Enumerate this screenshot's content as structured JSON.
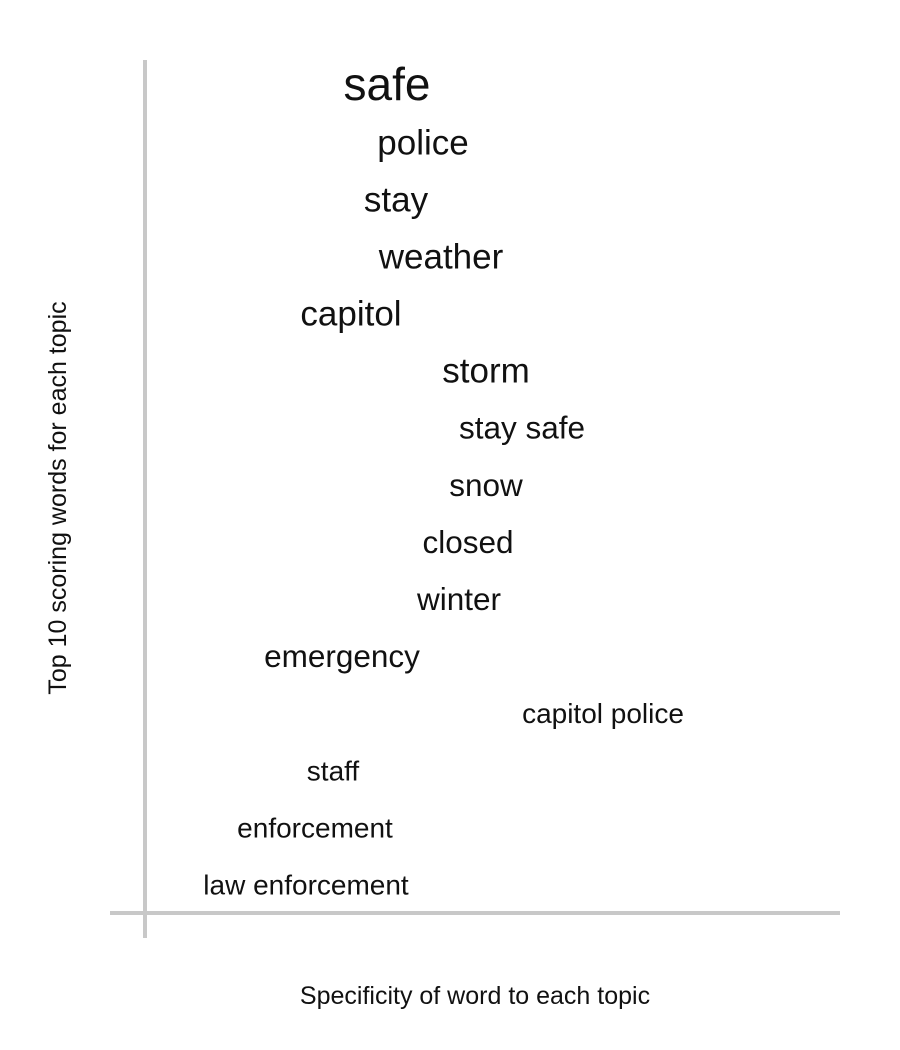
{
  "colors": {
    "axis": "#c8c8c8",
    "text": "#111111",
    "background": "#ffffff"
  },
  "chart_data": {
    "type": "scatter",
    "title": "",
    "xlabel": "Specificity of word to each topic",
    "ylabel": "Top 10 scoring words for each topic",
    "xlim": [
      0,
      1
    ],
    "ylim": [
      0,
      15
    ],
    "grid": false,
    "legend": "none",
    "points": [
      {
        "word": "safe",
        "x": 0.43,
        "y": 14,
        "size": 5
      },
      {
        "word": "police",
        "x": 0.47,
        "y": 13,
        "size": 3
      },
      {
        "word": "stay",
        "x": 0.44,
        "y": 12,
        "size": 3
      },
      {
        "word": "weather",
        "x": 0.49,
        "y": 11,
        "size": 3
      },
      {
        "word": "capitol",
        "x": 0.39,
        "y": 10,
        "size": 3
      },
      {
        "word": "storm",
        "x": 0.54,
        "y": 9,
        "size": 3
      },
      {
        "word": "stay safe",
        "x": 0.58,
        "y": 8,
        "size": 2
      },
      {
        "word": "snow",
        "x": 0.54,
        "y": 7,
        "size": 2
      },
      {
        "word": "closed",
        "x": 0.52,
        "y": 6,
        "size": 2
      },
      {
        "word": "winter",
        "x": 0.51,
        "y": 5,
        "size": 2
      },
      {
        "word": "emergency",
        "x": 0.38,
        "y": 4,
        "size": 2
      },
      {
        "word": "capitol police",
        "x": 0.67,
        "y": 3,
        "size": 1
      },
      {
        "word": "staff",
        "x": 0.37,
        "y": 2,
        "size": 1
      },
      {
        "word": "enforcement",
        "x": 0.35,
        "y": 1,
        "size": 1
      },
      {
        "word": "law enforcement",
        "x": 0.34,
        "y": 0,
        "size": 1
      }
    ]
  }
}
